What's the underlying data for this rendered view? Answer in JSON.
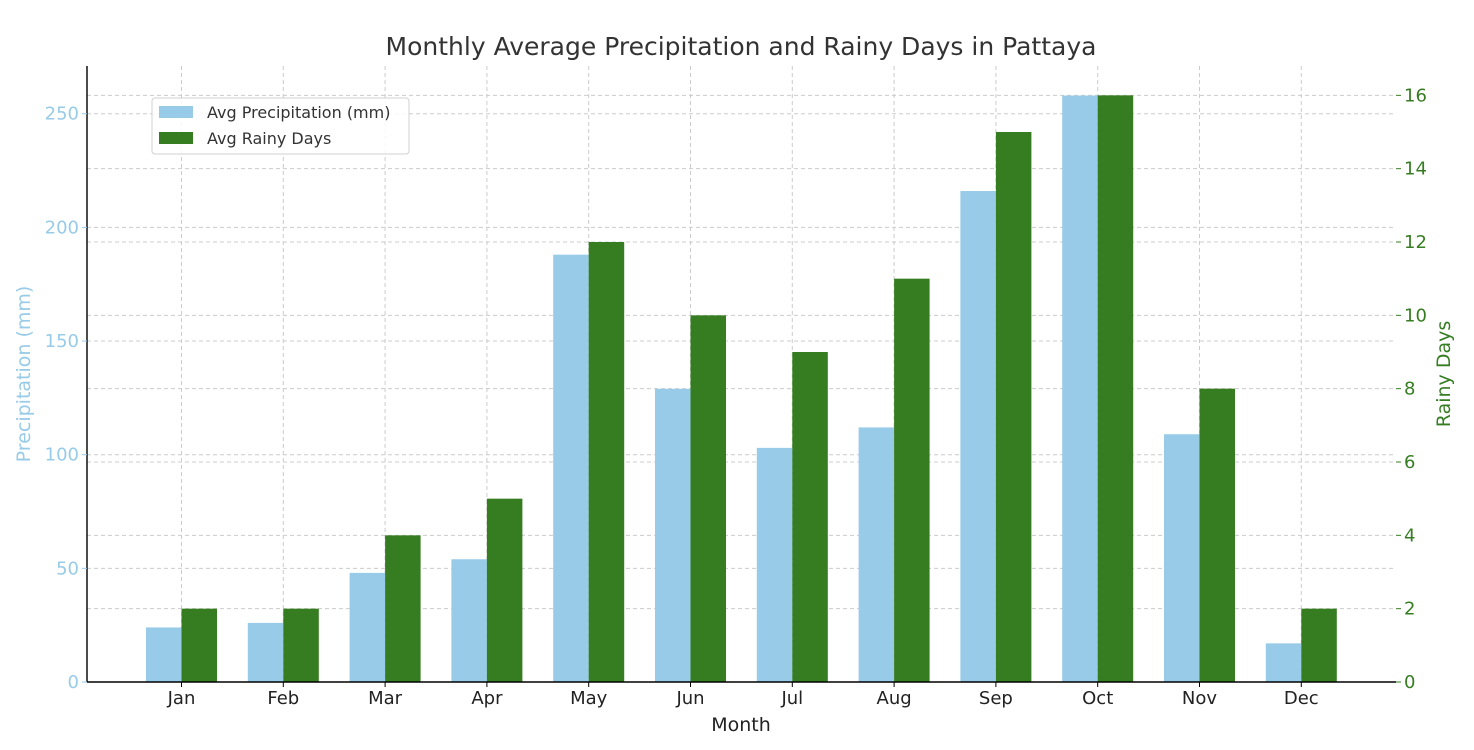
{
  "chart_data": {
    "type": "bar",
    "title": "Monthly Average Precipitation and Rainy Days in Pattaya",
    "xlabel": "Month",
    "ylabel_left": "Precipitation (mm)",
    "ylabel_right": "Rainy Days",
    "categories": [
      "Jan",
      "Feb",
      "Mar",
      "Apr",
      "May",
      "Jun",
      "Jul",
      "Aug",
      "Sep",
      "Oct",
      "Nov",
      "Dec"
    ],
    "series": [
      {
        "name": "Avg Precipitation (mm)",
        "axis": "left",
        "color": "#97cbe8",
        "values": [
          24,
          26,
          48,
          54,
          188,
          129,
          103,
          112,
          216,
          258,
          109,
          17
        ]
      },
      {
        "name": "Avg Rainy Days",
        "axis": "right",
        "color": "#367d22",
        "values": [
          2,
          2,
          4,
          5,
          12,
          10,
          9,
          11,
          15,
          16,
          8,
          2
        ]
      }
    ],
    "ylim_left": [
      0,
      271
    ],
    "yticks_left": [
      0,
      50,
      100,
      150,
      200,
      250
    ],
    "ylim_right": [
      0,
      16.8
    ],
    "yticks_right": [
      0,
      2,
      4,
      6,
      8,
      10,
      12,
      14,
      16
    ],
    "left_axis_color": "#97cbe8",
    "right_axis_color": "#367d22",
    "grid": true,
    "legend_position": "top-left"
  }
}
